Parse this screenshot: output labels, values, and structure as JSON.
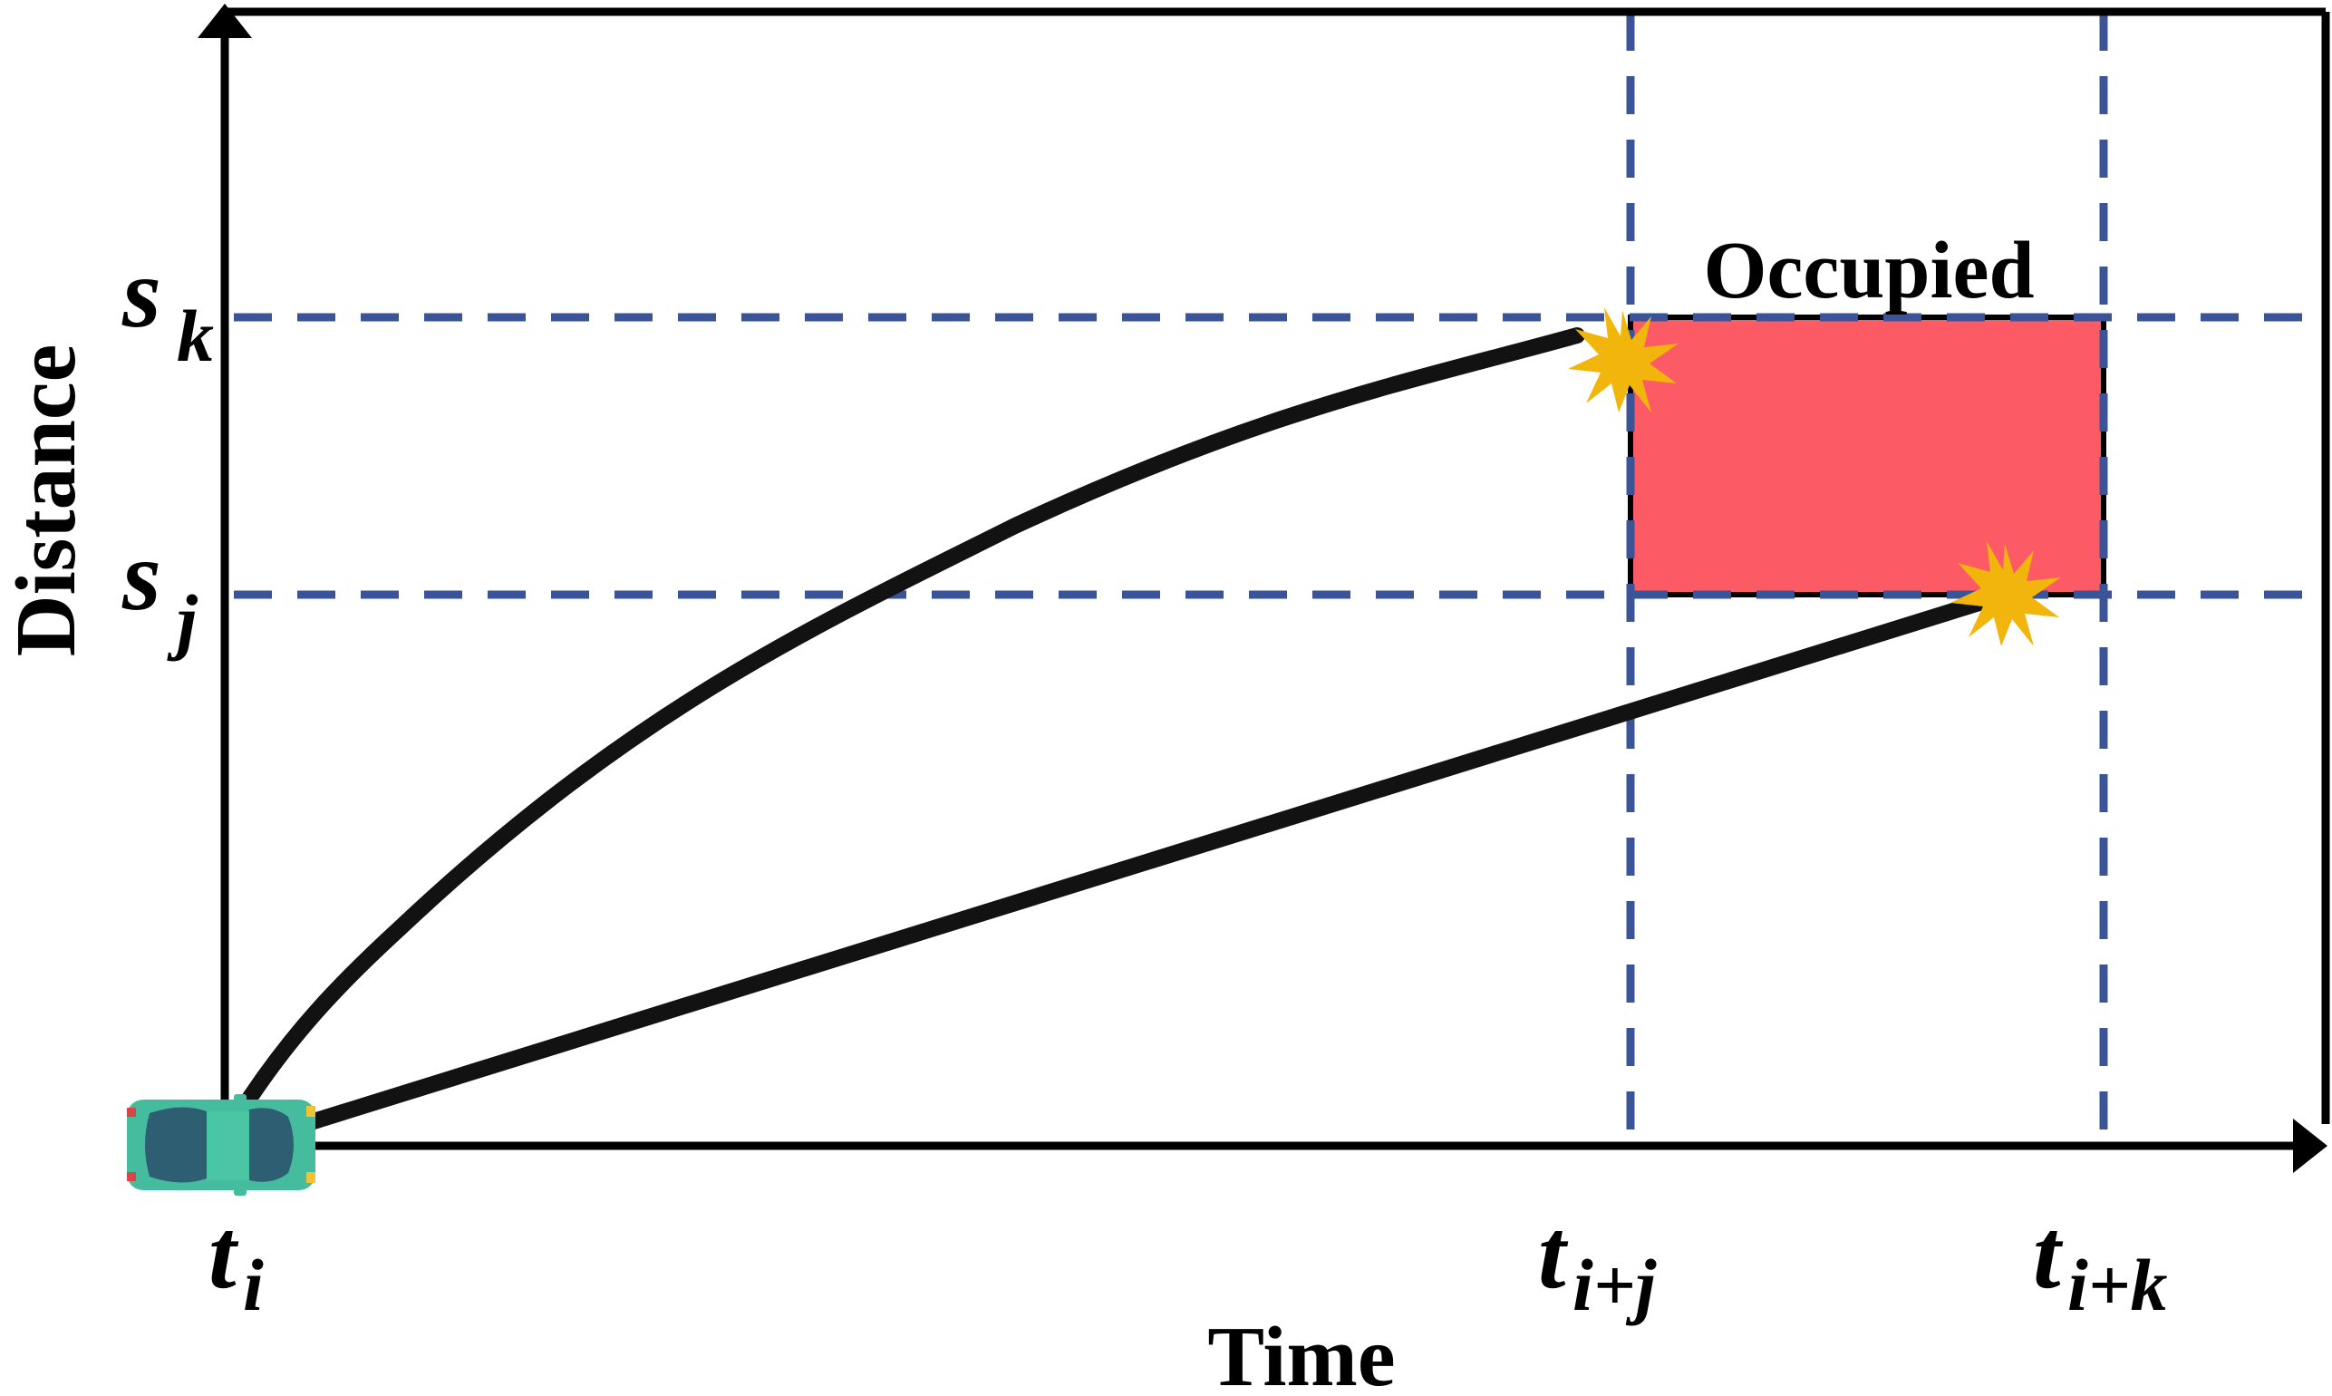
{
  "labels": {
    "y_axis": "Distance",
    "x_axis": "Time",
    "occupied": "Occupied",
    "s_k_base": "s",
    "s_k_sub": "k",
    "s_j_base": "s",
    "s_j_sub": "j",
    "t_i_base": "t",
    "t_i_sub": "i",
    "t_ij_base": "t",
    "t_ij_sub": "i+j",
    "t_ik_base": "t",
    "t_ik_sub": "i+k"
  },
  "colors": {
    "axis": "#000000",
    "dashed": "#3a5497",
    "occupied_fill": "#fc5a64",
    "trajectory": "#121212",
    "collision": "#f1b50c",
    "car_body": "#45bc9d",
    "car_glass": "#2e5e72"
  },
  "icons": {
    "vehicle": "car-icon",
    "collision": "collision-burst-icon"
  }
}
